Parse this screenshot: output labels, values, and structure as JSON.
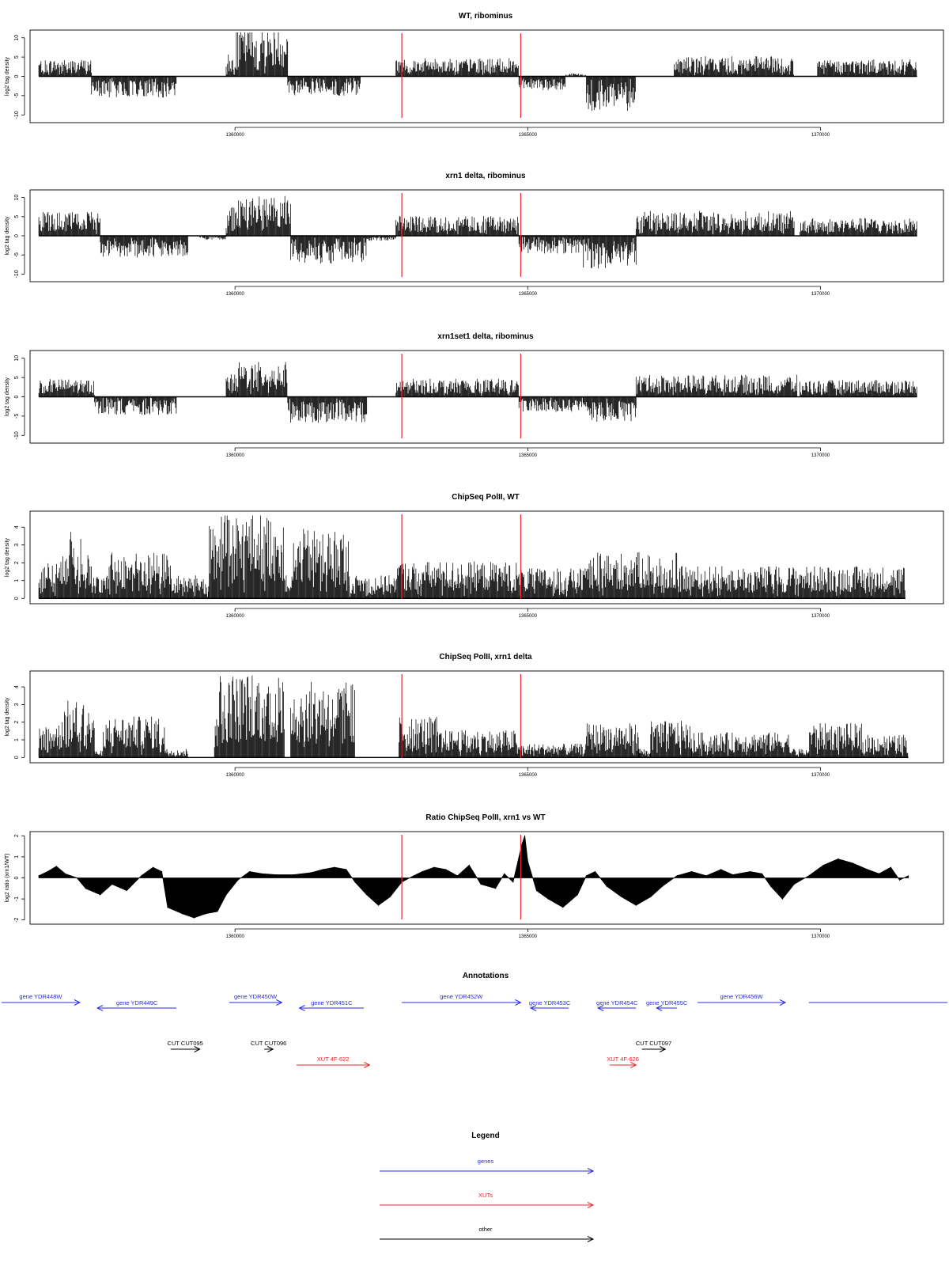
{
  "colors": {
    "marker": "#e8262d",
    "genes": "#2a2ae6",
    "xuts": "#e8262d",
    "other": "#000000",
    "bars": "#000000"
  },
  "chart_data": [
    {
      "type": "bar",
      "title": "WT, ribominus",
      "ylabel": "log2 tag density",
      "ylim": [
        -12,
        12
      ],
      "yticks": [
        -10,
        -5,
        0,
        5,
        10
      ],
      "xlim": [
        1356500,
        1372100
      ],
      "xticks": [
        1360000,
        1365000,
        1370000
      ],
      "markers": [
        1362850,
        1364880
      ],
      "signal": "strand-specific log2 tag density along chromosome coordinate",
      "segments": [
        {
          "start": 1356650,
          "end": 1357550,
          "sign": 1,
          "level": 3.4
        },
        {
          "start": 1357550,
          "end": 1359000,
          "sign": -1,
          "level": 4.2
        },
        {
          "start": 1359850,
          "end": 1360000,
          "sign": 1,
          "level": 4.5
        },
        {
          "start": 1360000,
          "end": 1360900,
          "sign": 1,
          "level": 9.5
        },
        {
          "start": 1360900,
          "end": 1362150,
          "sign": -1,
          "level": 4.0
        },
        {
          "start": 1362750,
          "end": 1364850,
          "sign": 1,
          "level": 3.6
        },
        {
          "start": 1364850,
          "end": 1365650,
          "sign": -1,
          "level": 2.8
        },
        {
          "start": 1365650,
          "end": 1366000,
          "sign": 1,
          "level": 0.6
        },
        {
          "start": 1366000,
          "end": 1366850,
          "sign": -1,
          "level": 7.0
        },
        {
          "start": 1367500,
          "end": 1369550,
          "sign": 1,
          "level": 4.0
        },
        {
          "start": 1369950,
          "end": 1371650,
          "sign": 1,
          "level": 3.4
        }
      ]
    },
    {
      "type": "bar",
      "title": "xrn1 delta, ribominus",
      "ylabel": "log2 tag density",
      "ylim": [
        -12,
        12
      ],
      "yticks": [
        -10,
        -5,
        0,
        5,
        10
      ],
      "xlim": [
        1356500,
        1372100
      ],
      "xticks": [
        1360000,
        1365000,
        1370000
      ],
      "markers": [
        1362850,
        1364880
      ],
      "segments": [
        {
          "start": 1356650,
          "end": 1357700,
          "sign": 1,
          "level": 4.8
        },
        {
          "start": 1357700,
          "end": 1359200,
          "sign": -1,
          "level": 4.4
        },
        {
          "start": 1359400,
          "end": 1359850,
          "sign": -1,
          "level": 0.8
        },
        {
          "start": 1359850,
          "end": 1360050,
          "sign": 1,
          "level": 6.5
        },
        {
          "start": 1360050,
          "end": 1360950,
          "sign": 1,
          "level": 8.0
        },
        {
          "start": 1360950,
          "end": 1362250,
          "sign": -1,
          "level": 5.6
        },
        {
          "start": 1362250,
          "end": 1362750,
          "sign": -1,
          "level": 1.0
        },
        {
          "start": 1362750,
          "end": 1364850,
          "sign": 1,
          "level": 4.0
        },
        {
          "start": 1364850,
          "end": 1365950,
          "sign": -1,
          "level": 3.6
        },
        {
          "start": 1365950,
          "end": 1366850,
          "sign": -1,
          "level": 6.6
        },
        {
          "start": 1366850,
          "end": 1369550,
          "sign": 1,
          "level": 5.0
        },
        {
          "start": 1369650,
          "end": 1371650,
          "sign": 1,
          "level": 3.6
        }
      ]
    },
    {
      "type": "bar",
      "title": "xrn1set1 delta, ribominus",
      "ylabel": "log2 tag density",
      "ylim": [
        -12,
        12
      ],
      "yticks": [
        -10,
        -5,
        0,
        5,
        10
      ],
      "xlim": [
        1356500,
        1372100
      ],
      "xticks": [
        1360000,
        1365000,
        1370000
      ],
      "markers": [
        1362850,
        1364880
      ],
      "segments": [
        {
          "start": 1356650,
          "end": 1357600,
          "sign": 1,
          "level": 3.6
        },
        {
          "start": 1357600,
          "end": 1359000,
          "sign": -1,
          "level": 3.6
        },
        {
          "start": 1359850,
          "end": 1360050,
          "sign": 1,
          "level": 4.5
        },
        {
          "start": 1360050,
          "end": 1360900,
          "sign": 1,
          "level": 7.0
        },
        {
          "start": 1360900,
          "end": 1362250,
          "sign": -1,
          "level": 5.2
        },
        {
          "start": 1362750,
          "end": 1364850,
          "sign": 1,
          "level": 3.6
        },
        {
          "start": 1364850,
          "end": 1365950,
          "sign": -1,
          "level": 3.0
        },
        {
          "start": 1365950,
          "end": 1366850,
          "sign": -1,
          "level": 5.0
        },
        {
          "start": 1366850,
          "end": 1369600,
          "sign": 1,
          "level": 4.4
        },
        {
          "start": 1369650,
          "end": 1371650,
          "sign": 1,
          "level": 3.4
        }
      ]
    },
    {
      "type": "bar",
      "title": "ChipSeq PolII, WT",
      "ylabel": "log2 tag density",
      "ylim": [
        -0.3,
        4.9
      ],
      "yticks": [
        0,
        1,
        2,
        3,
        4
      ],
      "xlim": [
        1356500,
        1372100
      ],
      "xticks": [
        1360000,
        1365000,
        1370000
      ],
      "markers": [
        1362850,
        1364880
      ],
      "segments": [
        {
          "start": 1356650,
          "end": 1357050,
          "sign": 1,
          "level": 1.6
        },
        {
          "start": 1357050,
          "end": 1357550,
          "sign": 1,
          "level": 2.9
        },
        {
          "start": 1357550,
          "end": 1357850,
          "sign": 1,
          "level": 1.0
        },
        {
          "start": 1357850,
          "end": 1358900,
          "sign": 1,
          "level": 2.0
        },
        {
          "start": 1358900,
          "end": 1359550,
          "sign": 1,
          "level": 1.0
        },
        {
          "start": 1359550,
          "end": 1360850,
          "sign": 1,
          "level": 3.7
        },
        {
          "start": 1360850,
          "end": 1361000,
          "sign": 1,
          "level": 1.0
        },
        {
          "start": 1361000,
          "end": 1361950,
          "sign": 1,
          "level": 3.0
        },
        {
          "start": 1361950,
          "end": 1362750,
          "sign": 1,
          "level": 1.0
        },
        {
          "start": 1362750,
          "end": 1364850,
          "sign": 1,
          "level": 1.6
        },
        {
          "start": 1364850,
          "end": 1366000,
          "sign": 1,
          "level": 1.3
        },
        {
          "start": 1366000,
          "end": 1367600,
          "sign": 1,
          "level": 2.0
        },
        {
          "start": 1367600,
          "end": 1371450,
          "sign": 1,
          "level": 1.4
        }
      ]
    },
    {
      "type": "bar",
      "title": "ChipSeq PolII, xrn1 delta",
      "ylabel": "log2 tag density",
      "ylim": [
        -0.3,
        4.9
      ],
      "yticks": [
        0,
        1,
        2,
        3,
        4
      ],
      "xlim": [
        1356500,
        1372100
      ],
      "xticks": [
        1360000,
        1365000,
        1370000
      ],
      "markers": [
        1362850,
        1364880
      ],
      "segments": [
        {
          "start": 1356650,
          "end": 1357050,
          "sign": 1,
          "level": 1.5
        },
        {
          "start": 1357050,
          "end": 1357600,
          "sign": 1,
          "level": 2.5
        },
        {
          "start": 1357600,
          "end": 1357750,
          "sign": 1,
          "level": 0.3
        },
        {
          "start": 1357750,
          "end": 1358800,
          "sign": 1,
          "level": 1.8
        },
        {
          "start": 1358800,
          "end": 1359200,
          "sign": 1,
          "level": 0.4
        },
        {
          "start": 1359650,
          "end": 1360850,
          "sign": 1,
          "level": 3.7
        },
        {
          "start": 1360950,
          "end": 1362050,
          "sign": 1,
          "level": 3.3
        },
        {
          "start": 1362800,
          "end": 1363450,
          "sign": 1,
          "level": 1.8
        },
        {
          "start": 1363450,
          "end": 1364800,
          "sign": 1,
          "level": 1.2
        },
        {
          "start": 1364800,
          "end": 1366000,
          "sign": 1,
          "level": 0.6
        },
        {
          "start": 1366000,
          "end": 1366900,
          "sign": 1,
          "level": 1.5
        },
        {
          "start": 1366900,
          "end": 1367100,
          "sign": 1,
          "level": 0.4
        },
        {
          "start": 1367100,
          "end": 1367800,
          "sign": 1,
          "level": 1.6
        },
        {
          "start": 1367800,
          "end": 1369500,
          "sign": 1,
          "level": 1.1
        },
        {
          "start": 1369500,
          "end": 1369800,
          "sign": 1,
          "level": 0.4
        },
        {
          "start": 1369800,
          "end": 1370700,
          "sign": 1,
          "level": 1.5
        },
        {
          "start": 1370700,
          "end": 1371500,
          "sign": 1,
          "level": 1.0
        }
      ]
    },
    {
      "type": "area",
      "title": "Ratio ChipSeq PolII, xrn1 vs WT",
      "ylabel": "log2 ratio (xrn1/WT)",
      "ylim": [
        -2.2,
        2.2
      ],
      "yticks": [
        -2,
        -1,
        0,
        1,
        2
      ],
      "xlim": [
        1356500,
        1372100
      ],
      "xticks": [
        1360000,
        1365000,
        1370000
      ],
      "markers": [
        1362850,
        1364880
      ],
      "points": [
        [
          1356650,
          0.1
        ],
        [
          1356800,
          0.3
        ],
        [
          1356950,
          0.55
        ],
        [
          1357100,
          0.2
        ],
        [
          1357300,
          0.0
        ],
        [
          1357450,
          -0.5
        ],
        [
          1357700,
          -0.8
        ],
        [
          1357900,
          -0.3
        ],
        [
          1358150,
          -0.6
        ],
        [
          1358400,
          0.1
        ],
        [
          1358600,
          0.5
        ],
        [
          1358750,
          0.3
        ],
        [
          1358850,
          -1.4
        ],
        [
          1359100,
          -1.7
        ],
        [
          1359300,
          -1.9
        ],
        [
          1359500,
          -1.7
        ],
        [
          1359700,
          -1.6
        ],
        [
          1359850,
          -0.8
        ],
        [
          1360050,
          -0.1
        ],
        [
          1360250,
          0.3
        ],
        [
          1360450,
          0.2
        ],
        [
          1360700,
          0.15
        ],
        [
          1361000,
          0.15
        ],
        [
          1361300,
          0.25
        ],
        [
          1361500,
          0.4
        ],
        [
          1361700,
          0.5
        ],
        [
          1361900,
          0.4
        ],
        [
          1362050,
          -0.2
        ],
        [
          1362250,
          -0.8
        ],
        [
          1362450,
          -1.3
        ],
        [
          1362650,
          -0.9
        ],
        [
          1362850,
          -0.2
        ],
        [
          1363050,
          0.1
        ],
        [
          1363200,
          0.3
        ],
        [
          1363400,
          0.5
        ],
        [
          1363600,
          0.4
        ],
        [
          1363800,
          0.1
        ],
        [
          1364000,
          0.6
        ],
        [
          1364200,
          -0.3
        ],
        [
          1364450,
          -0.5
        ],
        [
          1364600,
          0.2
        ],
        [
          1364750,
          -0.2
        ],
        [
          1364900,
          1.6
        ],
        [
          1364950,
          2.0
        ],
        [
          1365000,
          0.8
        ],
        [
          1365150,
          -0.6
        ],
        [
          1365350,
          -1.0
        ],
        [
          1365600,
          -1.4
        ],
        [
          1365850,
          -0.8
        ],
        [
          1366000,
          0.1
        ],
        [
          1366150,
          0.3
        ],
        [
          1366350,
          -0.4
        ],
        [
          1366600,
          -0.9
        ],
        [
          1366850,
          -1.3
        ],
        [
          1367100,
          -0.9
        ],
        [
          1367300,
          -0.4
        ],
        [
          1367550,
          0.1
        ],
        [
          1367800,
          0.3
        ],
        [
          1368050,
          0.1
        ],
        [
          1368300,
          0.4
        ],
        [
          1368500,
          0.15
        ],
        [
          1368800,
          0.3
        ],
        [
          1369000,
          0.2
        ],
        [
          1369150,
          -0.4
        ],
        [
          1369350,
          -1.0
        ],
        [
          1369550,
          -0.3
        ],
        [
          1369800,
          0.1
        ],
        [
          1370050,
          0.6
        ],
        [
          1370300,
          0.9
        ],
        [
          1370550,
          0.7
        ],
        [
          1370800,
          0.4
        ],
        [
          1371000,
          0.2
        ],
        [
          1371200,
          0.5
        ],
        [
          1371350,
          -0.1
        ],
        [
          1371500,
          0.1
        ]
      ]
    }
  ],
  "annotations": {
    "title": "Annotations",
    "features": [
      {
        "label": "gene YDR448W",
        "type": "genes",
        "start": 1356000,
        "end": 1357350,
        "direction": "forward",
        "row": 0
      },
      {
        "label": "gene YDR449C",
        "type": "genes",
        "start": 1357650,
        "end": 1359000,
        "direction": "reverse",
        "row": 1
      },
      {
        "label": "gene YDR450W",
        "type": "genes",
        "start": 1359900,
        "end": 1360800,
        "direction": "forward",
        "row": 0
      },
      {
        "label": "gene YDR451C",
        "type": "genes",
        "start": 1361100,
        "end": 1362200,
        "direction": "reverse",
        "row": 1
      },
      {
        "label": "gene YDR452W",
        "type": "genes",
        "start": 1362850,
        "end": 1364880,
        "direction": "forward",
        "row": 0
      },
      {
        "label": "gene YDR453C",
        "type": "genes",
        "start": 1365050,
        "end": 1365700,
        "direction": "reverse",
        "row": 1
      },
      {
        "label": "gene YDR454C",
        "type": "genes",
        "start": 1366200,
        "end": 1366850,
        "direction": "reverse",
        "row": 1
      },
      {
        "label": "gene YDR455C",
        "type": "genes",
        "start": 1367200,
        "end": 1367550,
        "direction": "reverse",
        "row": 1
      },
      {
        "label": "gene YDR456W",
        "type": "genes",
        "start": 1367900,
        "end": 1369400,
        "direction": "forward",
        "row": 0
      },
      {
        "label": "",
        "type": "genes",
        "start": 1369800,
        "end": 1372100,
        "direction": "forward",
        "row": 0
      },
      {
        "label": "CUT CUT095",
        "type": "other",
        "start": 1358900,
        "end": 1359400,
        "direction": "forward",
        "row": 2
      },
      {
        "label": "CUT CUT096",
        "type": "other",
        "start": 1360500,
        "end": 1360650,
        "direction": "forward",
        "row": 2
      },
      {
        "label": "CUT CUT097",
        "type": "other",
        "start": 1366950,
        "end": 1367350,
        "direction": "forward",
        "row": 2
      },
      {
        "label": "XUT 4F-622",
        "type": "xuts",
        "start": 1361050,
        "end": 1362300,
        "direction": "forward",
        "row": 3
      },
      {
        "label": "XUT 4F-626",
        "type": "xuts",
        "start": 1366400,
        "end": 1366850,
        "direction": "forward",
        "row": 3
      }
    ]
  },
  "legend": {
    "title": "Legend",
    "items": [
      {
        "label": "genes",
        "type": "genes"
      },
      {
        "label": "XUTs",
        "type": "xuts"
      },
      {
        "label": "other",
        "type": "other"
      }
    ]
  }
}
